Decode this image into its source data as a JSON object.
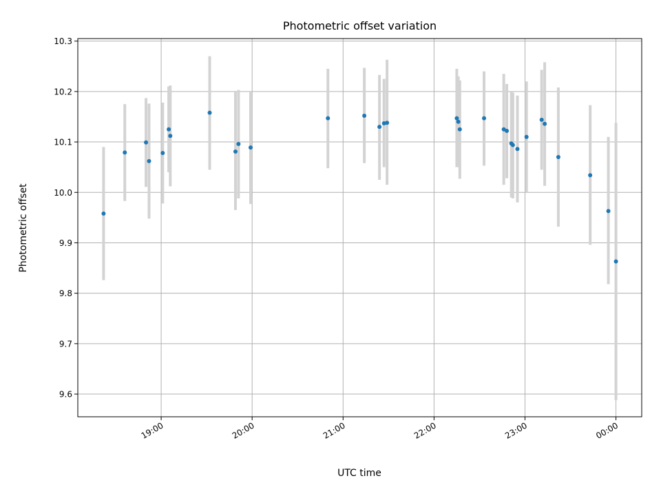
{
  "chart_data": {
    "type": "scatter",
    "title": "Photometric offset variation",
    "xlabel": "UTC time",
    "ylabel": "Photometric offset",
    "xlim": [
      "18:05",
      "00:17"
    ],
    "ylim": [
      9.555,
      10.305
    ],
    "x_ticks": [
      "19:00",
      "20:00",
      "21:00",
      "22:00",
      "23:00",
      "00:00"
    ],
    "y_ticks": [
      "9.6",
      "9.7",
      "9.8",
      "9.9",
      "10.0",
      "10.1",
      "10.2",
      "10.3"
    ],
    "grid": true,
    "marker_color": "#1f77b4",
    "errorbar_color": "#d3d3d3",
    "points": [
      {
        "x": "18:22",
        "y": 9.958,
        "lo": 9.826,
        "hi": 10.09
      },
      {
        "x": "18:36",
        "y": 10.079,
        "lo": 9.983,
        "hi": 10.175
      },
      {
        "x": "18:50",
        "y": 10.099,
        "lo": 10.011,
        "hi": 10.187
      },
      {
        "x": "18:52",
        "y": 10.062,
        "lo": 9.948,
        "hi": 10.176
      },
      {
        "x": "19:01",
        "y": 10.078,
        "lo": 9.978,
        "hi": 10.178
      },
      {
        "x": "19:05",
        "y": 10.125,
        "lo": 10.04,
        "hi": 10.21
      },
      {
        "x": "19:06",
        "y": 10.112,
        "lo": 10.012,
        "hi": 10.212
      },
      {
        "x": "19:32",
        "y": 10.158,
        "lo": 10.045,
        "hi": 10.27
      },
      {
        "x": "19:49",
        "y": 10.081,
        "lo": 9.965,
        "hi": 10.2
      },
      {
        "x": "19:51",
        "y": 10.096,
        "lo": 9.988,
        "hi": 10.203
      },
      {
        "x": "19:59",
        "y": 10.089,
        "lo": 9.977,
        "hi": 10.2
      },
      {
        "x": "20:50",
        "y": 10.147,
        "lo": 10.048,
        "hi": 10.245
      },
      {
        "x": "21:14",
        "y": 10.152,
        "lo": 10.058,
        "hi": 10.247
      },
      {
        "x": "21:24",
        "y": 10.13,
        "lo": 10.025,
        "hi": 10.233
      },
      {
        "x": "21:27",
        "y": 10.137,
        "lo": 10.05,
        "hi": 10.225
      },
      {
        "x": "21:29",
        "y": 10.138,
        "lo": 10.015,
        "hi": 10.263
      },
      {
        "x": "22:15",
        "y": 10.147,
        "lo": 10.05,
        "hi": 10.245
      },
      {
        "x": "22:16",
        "y": 10.14,
        "lo": 10.05,
        "hi": 10.23
      },
      {
        "x": "22:17",
        "y": 10.125,
        "lo": 10.027,
        "hi": 10.222
      },
      {
        "x": "22:33",
        "y": 10.147,
        "lo": 10.053,
        "hi": 10.24
      },
      {
        "x": "22:46",
        "y": 10.125,
        "lo": 10.015,
        "hi": 10.235
      },
      {
        "x": "22:48",
        "y": 10.122,
        "lo": 10.028,
        "hi": 10.215
      },
      {
        "x": "22:51",
        "y": 10.097,
        "lo": 9.99,
        "hi": 10.2
      },
      {
        "x": "22:52",
        "y": 10.094,
        "lo": 9.988,
        "hi": 10.198
      },
      {
        "x": "22:55",
        "y": 10.086,
        "lo": 9.98,
        "hi": 10.192
      },
      {
        "x": "23:01",
        "y": 10.11,
        "lo": 10.0,
        "hi": 10.22
      },
      {
        "x": "23:11",
        "y": 10.144,
        "lo": 10.045,
        "hi": 10.243
      },
      {
        "x": "23:13",
        "y": 10.136,
        "lo": 10.013,
        "hi": 10.258
      },
      {
        "x": "23:22",
        "y": 10.07,
        "lo": 9.932,
        "hi": 10.208
      },
      {
        "x": "23:43",
        "y": 10.034,
        "lo": 9.896,
        "hi": 10.173
      },
      {
        "x": "23:55",
        "y": 9.963,
        "lo": 9.818,
        "hi": 10.11
      },
      {
        "x": "00:00",
        "y": 9.863,
        "lo": 9.588,
        "hi": 10.138
      }
    ]
  }
}
